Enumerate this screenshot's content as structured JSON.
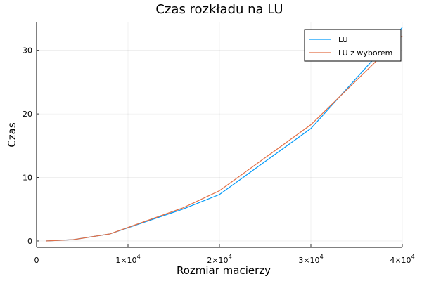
{
  "chart_data": {
    "type": "line",
    "title": "Czas rozkładu na LU",
    "xlabel": "Rozmiar macierzy",
    "ylabel": "Czas",
    "xlim": [
      0,
      40000
    ],
    "ylim": [
      -1,
      34.5
    ],
    "x_ticks": [
      {
        "value": 0,
        "mantissa": "0",
        "exponent": ""
      },
      {
        "value": 10000,
        "mantissa": "1×10",
        "exponent": "4"
      },
      {
        "value": 20000,
        "mantissa": "2×10",
        "exponent": "4"
      },
      {
        "value": 30000,
        "mantissa": "3×10",
        "exponent": "4"
      },
      {
        "value": 40000,
        "mantissa": "4×10",
        "exponent": "4"
      }
    ],
    "y_ticks": [
      0,
      10,
      20,
      30
    ],
    "grid": true,
    "legend_position": "top-right",
    "series": [
      {
        "name": "LU",
        "color": "#009af9",
        "x": [
          1000,
          4000,
          8000,
          16000,
          20000,
          30000,
          40000
        ],
        "y": [
          0.0,
          0.2,
          1.1,
          5.0,
          7.3,
          17.7,
          33.6
        ]
      },
      {
        "name": "LU z wyborem",
        "color": "#e26f46",
        "x": [
          1000,
          4000,
          8000,
          16000,
          20000,
          30000,
          40000
        ],
        "y": [
          0.0,
          0.2,
          1.1,
          5.2,
          7.9,
          18.3,
          32.3
        ]
      }
    ]
  }
}
